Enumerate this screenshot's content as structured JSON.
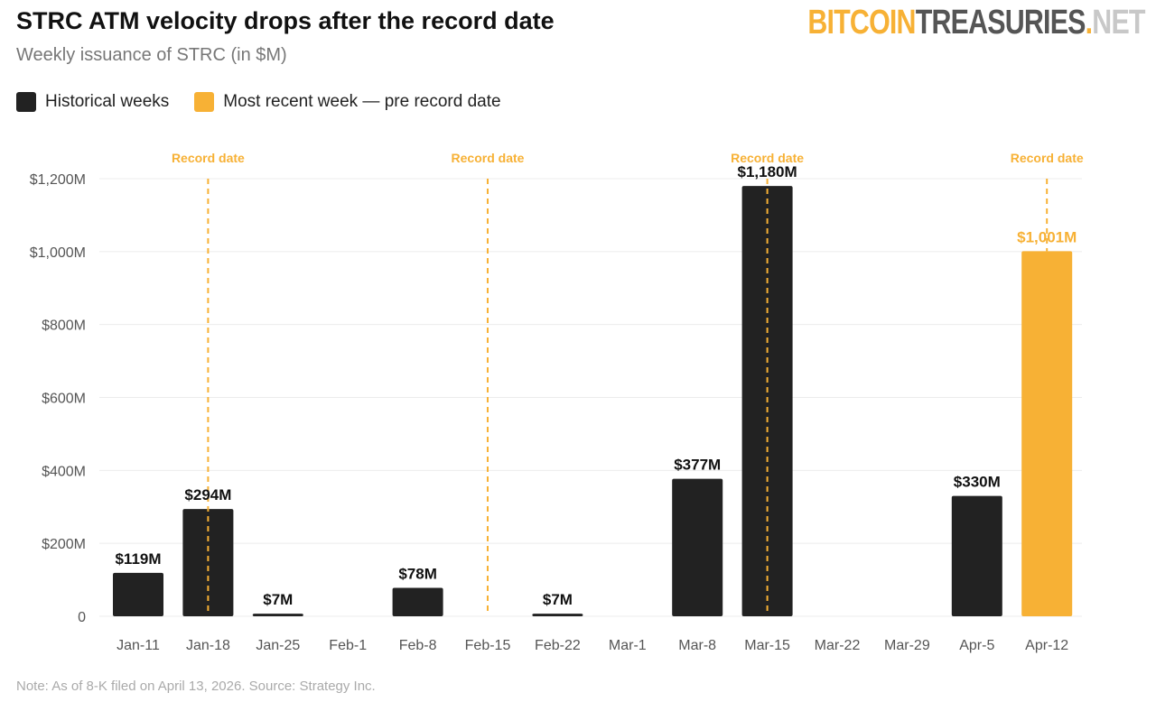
{
  "brand": {
    "logo_parts": [
      "BITCOIN",
      "TREASURIES",
      ".",
      "NET"
    ],
    "colors": [
      "#f7b135",
      "#555555",
      "#f7b135",
      "#c8c8c8"
    ]
  },
  "chart_data": {
    "type": "bar",
    "title": "STRC ATM velocity drops after the record date",
    "subtitle": "Weekly issuance of STRC (in $M)",
    "categories": [
      "Jan-11",
      "Jan-18",
      "Jan-25",
      "Feb-1",
      "Feb-8",
      "Feb-15",
      "Feb-22",
      "Mar-1",
      "Mar-8",
      "Mar-15",
      "Mar-22",
      "Mar-29",
      "Apr-5",
      "Apr-12"
    ],
    "values": [
      119,
      294,
      7,
      null,
      78,
      null,
      7,
      null,
      377,
      1180,
      null,
      null,
      330,
      1001
    ],
    "data_labels": [
      "$119M",
      "$294M",
      "$7M",
      "",
      "$78M",
      "",
      "$7M",
      "",
      "$377M",
      "$1,180M",
      "",
      "",
      "$330M",
      "$1,001M"
    ],
    "series_kind": [
      "historical",
      "historical",
      "historical",
      "historical",
      "historical",
      "historical",
      "historical",
      "historical",
      "historical",
      "historical",
      "historical",
      "historical",
      "historical",
      "recent"
    ],
    "legend": [
      {
        "name": "Historical weeks",
        "color": "#222222"
      },
      {
        "name": "Most recent week — pre record date",
        "color": "#f7b135"
      }
    ],
    "legend_placement": "top-left",
    "ylim": [
      0,
      1200
    ],
    "yticks": [
      0,
      200,
      400,
      600,
      800,
      1000,
      1200
    ],
    "ytick_labels": [
      "0",
      "$200M",
      "$400M",
      "$600M",
      "$800M",
      "$1,000M",
      "$1,200M"
    ],
    "grid": true,
    "annotations": [
      {
        "category": "Jan-18",
        "label": "Record date"
      },
      {
        "category": "Feb-15",
        "label": "Record date"
      },
      {
        "category": "Mar-15",
        "label": "Record date"
      },
      {
        "category": "Apr-12",
        "label": "Record date"
      }
    ],
    "note": "Note: As of 8-K filed on April 13, 2026. Source: Strategy Inc."
  }
}
